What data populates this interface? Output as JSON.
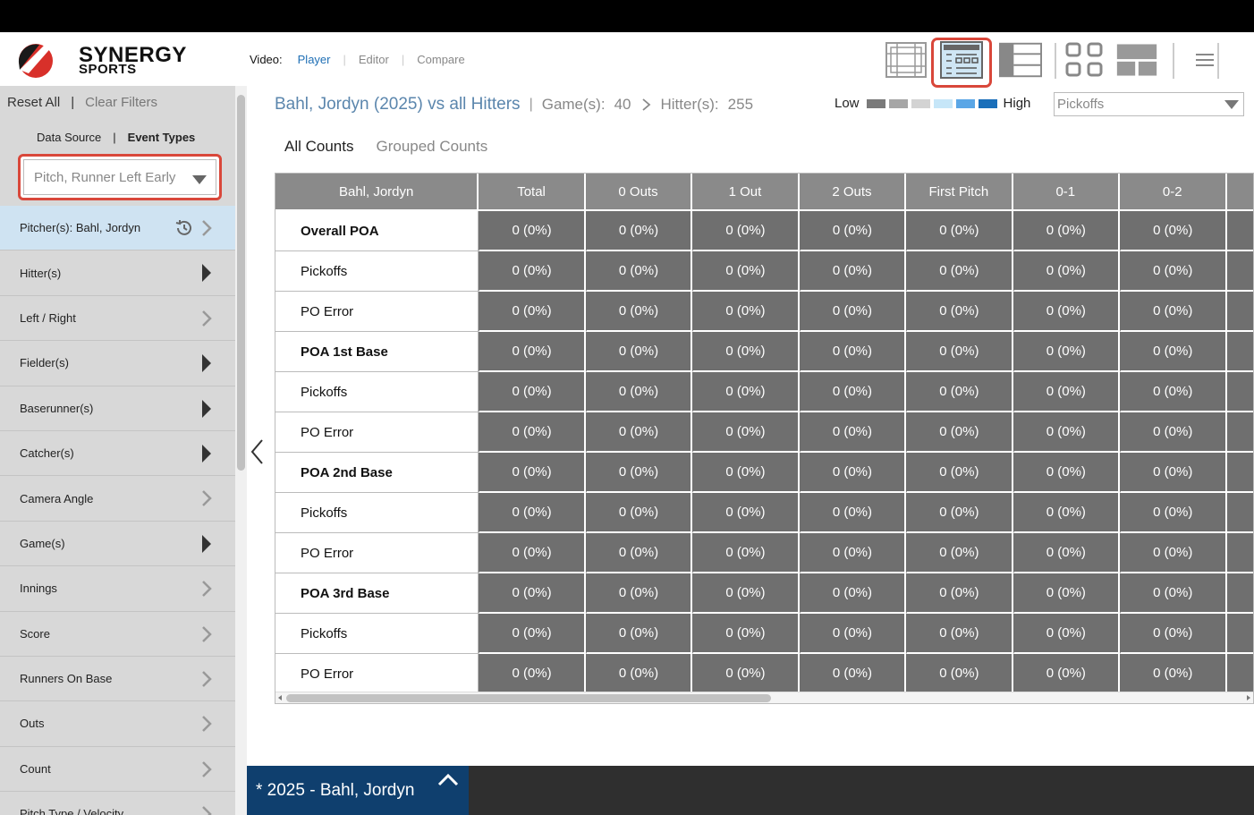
{
  "brand": {
    "line1": "SYNERGY",
    "line2": "SPORTS",
    "accent_red": "#d8302a",
    "accent_dark": "#1a1a1a"
  },
  "video_nav": {
    "label": "Video:",
    "tabs": [
      "Player",
      "Editor",
      "Compare"
    ],
    "active": "Player"
  },
  "view_icons": [
    "grid-view-icon",
    "table-view-icon",
    "split-view-icon",
    "tiles-view-icon",
    "layout-view-icon",
    "menu-icon"
  ],
  "sidebar": {
    "reset_all": "Reset All",
    "clear_filters": "Clear Filters",
    "tabs": [
      "Data Source",
      "Event Types"
    ],
    "event_type_value": "Pitch, Runner Left Early",
    "items": [
      {
        "label": "Pitcher(s): Bahl, Jordyn",
        "active": true
      },
      {
        "label": "Hitter(s)"
      },
      {
        "label": "Left / Right"
      },
      {
        "label": "Fielder(s)"
      },
      {
        "label": "Baserunner(s)"
      },
      {
        "label": "Catcher(s)"
      },
      {
        "label": "Camera Angle"
      },
      {
        "label": "Game(s)"
      },
      {
        "label": "Innings"
      },
      {
        "label": "Score"
      },
      {
        "label": "Runners On Base"
      },
      {
        "label": "Outs"
      },
      {
        "label": "Count"
      },
      {
        "label": "Pitch Type / Velocity"
      }
    ]
  },
  "title": {
    "main": "Bahl, Jordyn (2025) vs all Hitters",
    "games_label": "Game(s):",
    "games_value": "40",
    "hitters_label": "Hitter(s):",
    "hitters_value": "255"
  },
  "legend": {
    "low": "Low",
    "high": "High",
    "colors": [
      "#7a7a7a",
      "#a6a6a6",
      "#d3d3d3",
      "#c6e6f8",
      "#5aa6e6",
      "#1a6fba"
    ]
  },
  "metric_select": {
    "value": "Pickoffs"
  },
  "count_tabs": {
    "all": "All Counts",
    "grouped": "Grouped Counts"
  },
  "table": {
    "row_header": "Bahl, Jordyn",
    "columns": [
      "Total",
      "0 Outs",
      "1 Out",
      "2 Outs",
      "First Pitch",
      "0-1",
      "0-2"
    ],
    "rows": [
      {
        "label": "Overall POA",
        "bold": true,
        "values": [
          "0 (0%)",
          "0 (0%)",
          "0 (0%)",
          "0 (0%)",
          "0 (0%)",
          "0 (0%)",
          "0 (0%)"
        ]
      },
      {
        "label": "Pickoffs",
        "bold": false,
        "values": [
          "0 (0%)",
          "0 (0%)",
          "0 (0%)",
          "0 (0%)",
          "0 (0%)",
          "0 (0%)",
          "0 (0%)"
        ]
      },
      {
        "label": "PO Error",
        "bold": false,
        "values": [
          "0 (0%)",
          "0 (0%)",
          "0 (0%)",
          "0 (0%)",
          "0 (0%)",
          "0 (0%)",
          "0 (0%)"
        ]
      },
      {
        "label": "POA 1st Base",
        "bold": true,
        "values": [
          "0 (0%)",
          "0 (0%)",
          "0 (0%)",
          "0 (0%)",
          "0 (0%)",
          "0 (0%)",
          "0 (0%)"
        ]
      },
      {
        "label": "Pickoffs",
        "bold": false,
        "values": [
          "0 (0%)",
          "0 (0%)",
          "0 (0%)",
          "0 (0%)",
          "0 (0%)",
          "0 (0%)",
          "0 (0%)"
        ]
      },
      {
        "label": "PO Error",
        "bold": false,
        "values": [
          "0 (0%)",
          "0 (0%)",
          "0 (0%)",
          "0 (0%)",
          "0 (0%)",
          "0 (0%)",
          "0 (0%)"
        ]
      },
      {
        "label": "POA 2nd Base",
        "bold": true,
        "values": [
          "0 (0%)",
          "0 (0%)",
          "0 (0%)",
          "0 (0%)",
          "0 (0%)",
          "0 (0%)",
          "0 (0%)"
        ]
      },
      {
        "label": "Pickoffs",
        "bold": false,
        "values": [
          "0 (0%)",
          "0 (0%)",
          "0 (0%)",
          "0 (0%)",
          "0 (0%)",
          "0 (0%)",
          "0 (0%)"
        ]
      },
      {
        "label": "PO Error",
        "bold": false,
        "values": [
          "0 (0%)",
          "0 (0%)",
          "0 (0%)",
          "0 (0%)",
          "0 (0%)",
          "0 (0%)",
          "0 (0%)"
        ]
      },
      {
        "label": "POA 3rd Base",
        "bold": true,
        "values": [
          "0 (0%)",
          "0 (0%)",
          "0 (0%)",
          "0 (0%)",
          "0 (0%)",
          "0 (0%)",
          "0 (0%)"
        ]
      },
      {
        "label": "Pickoffs",
        "bold": false,
        "values": [
          "0 (0%)",
          "0 (0%)",
          "0 (0%)",
          "0 (0%)",
          "0 (0%)",
          "0 (0%)",
          "0 (0%)"
        ]
      },
      {
        "label": "PO Error",
        "bold": false,
        "values": [
          "0 (0%)",
          "0 (0%)",
          "0 (0%)",
          "0 (0%)",
          "0 (0%)",
          "0 (0%)",
          "0 (0%)"
        ]
      }
    ]
  },
  "bottom": {
    "tab_label": "* 2025 - Bahl, Jordyn"
  }
}
